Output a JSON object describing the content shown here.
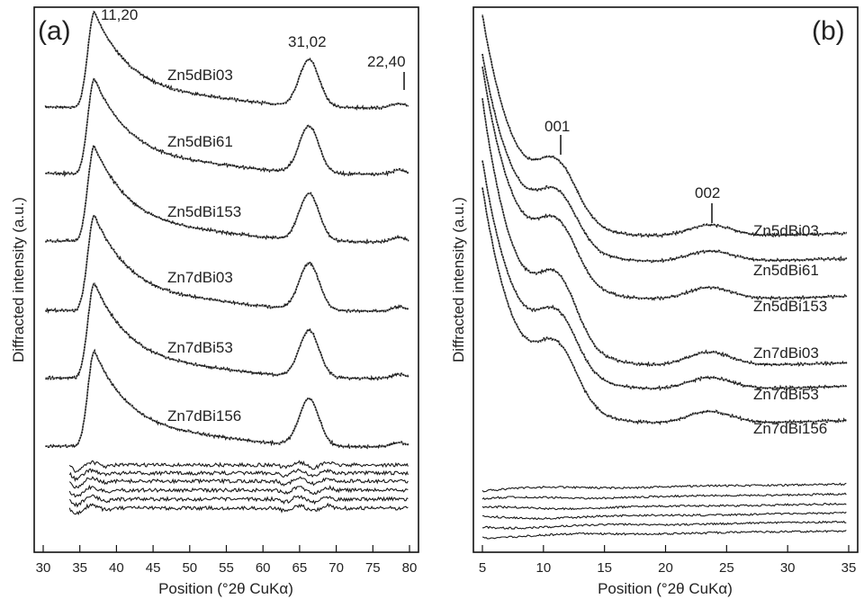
{
  "chart_data": [
    {
      "type": "line",
      "panel_label": "(a)",
      "xlabel": "Position (°2θ CuKα)",
      "ylabel": "Diffracted intensity (a.u.)",
      "xlim": [
        30,
        80
      ],
      "xticks": [
        30,
        35,
        40,
        45,
        50,
        55,
        60,
        65,
        70,
        75,
        80
      ],
      "grid": false,
      "series": [
        {
          "name": "Zn5dBi03"
        },
        {
          "name": "Zn5dBi61"
        },
        {
          "name": "Zn5dBi153"
        },
        {
          "name": "Zn7dBi03"
        },
        {
          "name": "Zn7dBi53"
        },
        {
          "name": "Zn7dBi156"
        }
      ],
      "peaks": [
        {
          "label": "11,20",
          "x": 37
        },
        {
          "label": "31,02",
          "x": 66.3
        },
        {
          "label": "22,40",
          "x": 78.5
        }
      ]
    },
    {
      "type": "line",
      "panel_label": "(b)",
      "xlabel": "Position (°2θ CuKα)",
      "ylabel": "Diffracted intensity (a.u.)",
      "xlim": [
        5,
        35
      ],
      "xticks": [
        5,
        10,
        15,
        20,
        25,
        30,
        35
      ],
      "grid": false,
      "series": [
        {
          "name": "Zn5dBi03"
        },
        {
          "name": "Zn5dBi61"
        },
        {
          "name": "Zn5dBi153"
        },
        {
          "name": "Zn7dBi03"
        },
        {
          "name": "Zn7dBi53"
        },
        {
          "name": "Zn7dBi156"
        }
      ],
      "peaks": [
        {
          "label": "001",
          "x": 11.6
        },
        {
          "label": "002",
          "x": 23.6
        }
      ]
    }
  ]
}
